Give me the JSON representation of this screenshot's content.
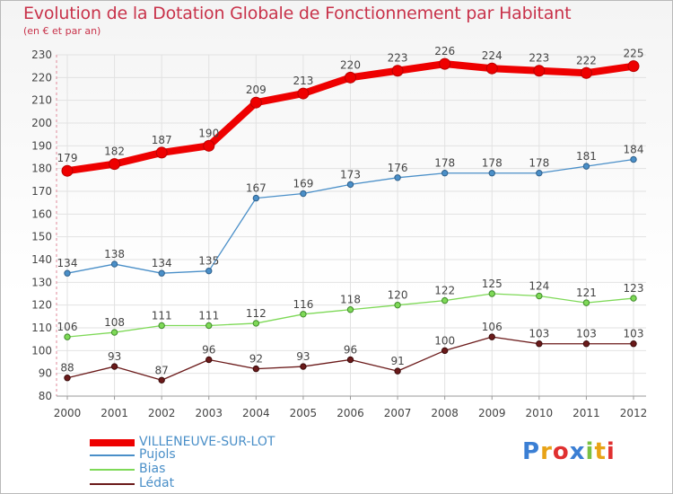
{
  "header": {
    "title": "Evolution de la Dotation Globale de Fonctionnement par Habitant",
    "subtitle": "(en € et par an)"
  },
  "chart_data": {
    "type": "line",
    "x": [
      "2000",
      "2001",
      "2002",
      "2003",
      "2004",
      "2005",
      "2006",
      "2007",
      "2008",
      "2009",
      "2010",
      "2011",
      "2012"
    ],
    "ylim": [
      80,
      230
    ],
    "yticks": [
      80,
      90,
      100,
      110,
      120,
      130,
      140,
      150,
      160,
      170,
      180,
      190,
      200,
      210,
      220,
      230
    ],
    "series": [
      {
        "name": "VILLENEUVE-SUR-LOT",
        "color": "#ee0000",
        "values": [
          179,
          182,
          187,
          190,
          209,
          213,
          220,
          223,
          226,
          224,
          223,
          222,
          225
        ]
      },
      {
        "name": "Pujols",
        "color": "#4a8fc8",
        "values": [
          134,
          138,
          134,
          135,
          167,
          169,
          173,
          176,
          178,
          178,
          178,
          181,
          184
        ]
      },
      {
        "name": "Bias",
        "color": "#7ed957",
        "values": [
          106,
          108,
          111,
          111,
          112,
          116,
          118,
          120,
          122,
          125,
          124,
          121,
          123
        ]
      },
      {
        "name": "Lédat",
        "color": "#6b1a1a",
        "values": [
          88,
          93,
          87,
          96,
          92,
          93,
          96,
          91,
          100,
          106,
          103,
          103,
          103
        ]
      }
    ]
  },
  "logo": {
    "text": "Proxiti",
    "letters": [
      "P",
      "r",
      "o",
      "x",
      "i",
      "t",
      "i"
    ],
    "colors": [
      "#3b7fd4",
      "#e8a317",
      "#e03030",
      "#3b7fd4",
      "#7ac143",
      "#e8a317",
      "#e03030"
    ]
  }
}
